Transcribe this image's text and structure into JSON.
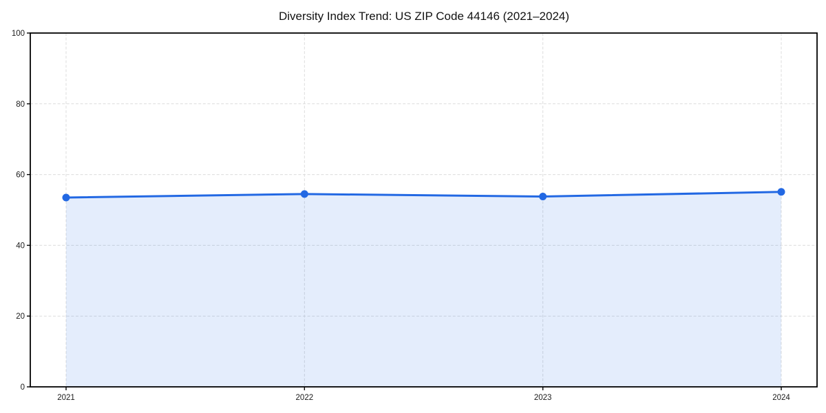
{
  "chart_data": {
    "type": "area",
    "title": "Diversity Index Trend: US ZIP Code 44146 (2021–2024)",
    "series_name": "Diversity Index",
    "categories": [
      "2021",
      "2022",
      "2023",
      "2024"
    ],
    "values": [
      53.5,
      54.5,
      53.8,
      55.1
    ],
    "xlabel": "",
    "ylabel": "",
    "ylim": [
      0,
      100
    ],
    "yticks": [
      0,
      20,
      40,
      60,
      80,
      100
    ],
    "grid": true,
    "legend": "none",
    "colors": {
      "line": "#2268e3",
      "marker": "#2268e3",
      "fill": "rgba(34, 104, 227, 0.12)",
      "grid": "#dcdcdc",
      "axis": "#000000",
      "text": "#1a1a1a"
    }
  }
}
